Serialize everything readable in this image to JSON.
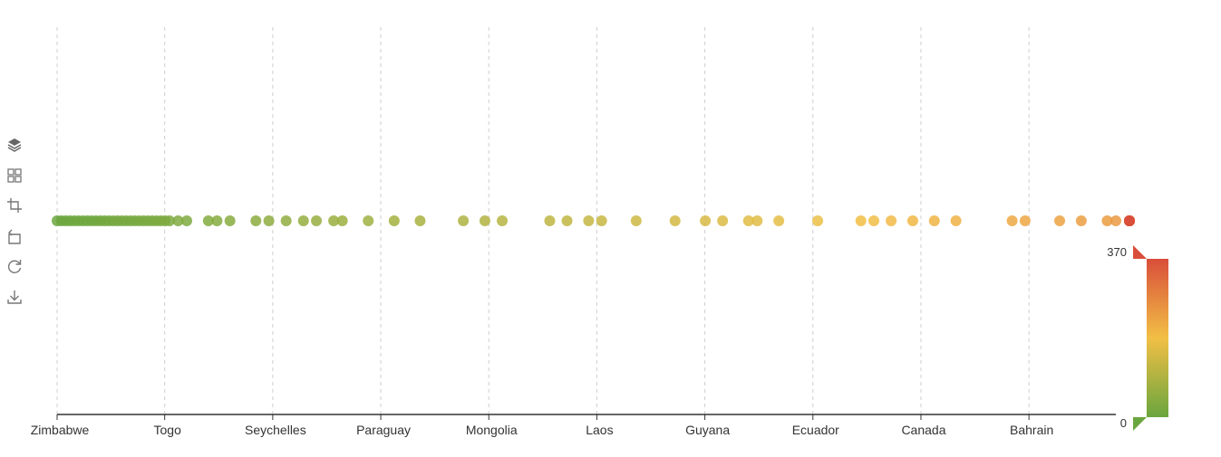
{
  "toolbox": {
    "items": [
      {
        "name": "layers-icon",
        "title": "Layers"
      },
      {
        "name": "grid-icon",
        "title": "Grid"
      },
      {
        "name": "crop-icon",
        "title": "Crop"
      },
      {
        "name": "undo-icon",
        "title": "Undo"
      },
      {
        "name": "refresh-icon",
        "title": "Refresh"
      },
      {
        "name": "download-icon",
        "title": "Download"
      }
    ]
  },
  "visual_map": {
    "max_label": "370",
    "min_label": "0",
    "min": 0,
    "max": 370,
    "colors": [
      "#6aa63e",
      "#f2bf45",
      "#d94e3a"
    ]
  },
  "chart_data": {
    "type": "scatter",
    "x_categories": [
      "Zimbabwe",
      "Togo",
      "Seychelles",
      "Paraguay",
      "Mongolia",
      "Laos",
      "Guyana",
      "Ecuador",
      "Canada",
      "Bahrain"
    ],
    "xlim": [
      0,
      245
    ],
    "grid": true,
    "points": [
      0,
      1,
      2,
      3,
      4,
      5,
      6,
      7,
      8,
      9,
      10,
      11,
      12,
      13,
      14,
      15,
      16,
      17,
      18,
      19,
      20,
      21,
      22,
      23,
      24,
      25,
      26,
      28,
      30,
      35,
      37,
      40,
      46,
      49,
      53,
      57,
      60,
      64,
      66,
      72,
      78,
      84,
      94,
      99,
      103,
      114,
      118,
      123,
      126,
      134,
      143,
      150,
      154,
      160,
      162,
      167,
      176,
      186,
      189,
      193,
      198,
      203,
      208,
      221,
      224,
      232,
      237,
      243,
      245,
      252,
      256,
      267,
      274,
      282,
      285,
      296,
      305,
      307,
      320,
      329,
      333,
      338,
      342,
      350,
      356,
      370
    ]
  }
}
